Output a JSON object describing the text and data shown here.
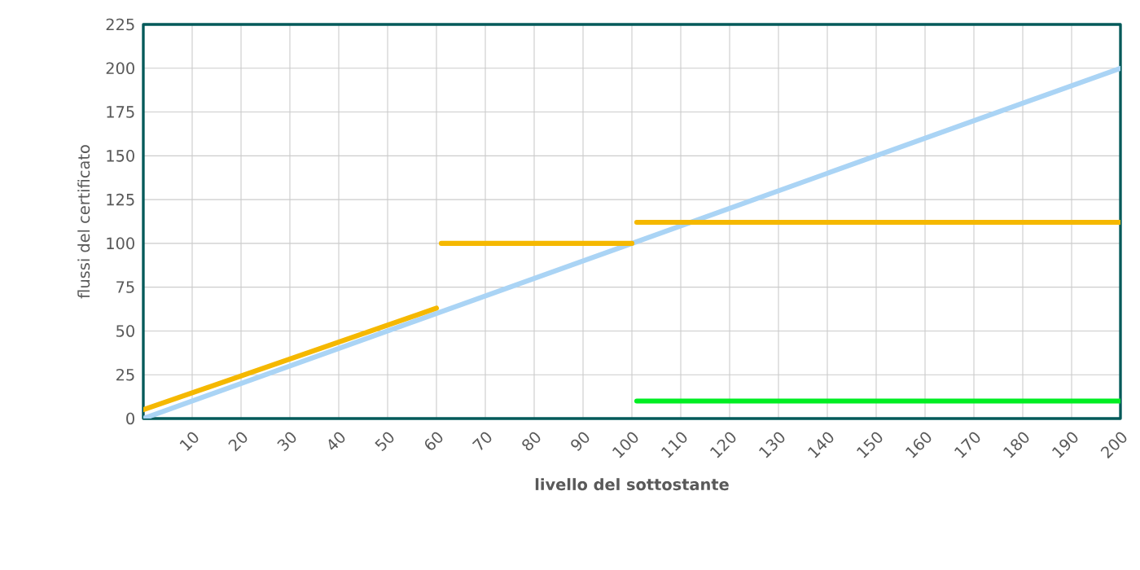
{
  "chart_data": {
    "type": "line",
    "xlabel": "livello del sottostante",
    "ylabel": "flussi del certificato",
    "xlim": [
      0,
      200
    ],
    "xticks": [
      10,
      20,
      30,
      40,
      50,
      60,
      70,
      80,
      90,
      100,
      110,
      120,
      130,
      140,
      150,
      160,
      170,
      180,
      190,
      200
    ],
    "ylim": [
      0,
      225
    ],
    "yticks": [
      0,
      25,
      50,
      75,
      100,
      125,
      150,
      175,
      200,
      225
    ],
    "grid": true,
    "marker": "none",
    "line_style": "solid",
    "series": [
      {
        "color": "#aad4f5",
        "x": [
          0,
          200
        ],
        "values": [
          0,
          200
        ]
      },
      {
        "color": "#f5b800",
        "x": [
          0,
          60
        ],
        "values": [
          5,
          63
        ]
      },
      {
        "color": "#f5b800",
        "x": [
          61,
          100
        ],
        "values": [
          100,
          100
        ]
      },
      {
        "color": "#f5b800",
        "x": [
          101,
          200
        ],
        "values": [
          112,
          112
        ]
      },
      {
        "color": "#00ee22",
        "x": [
          101,
          200
        ],
        "values": [
          10,
          10
        ]
      }
    ]
  }
}
